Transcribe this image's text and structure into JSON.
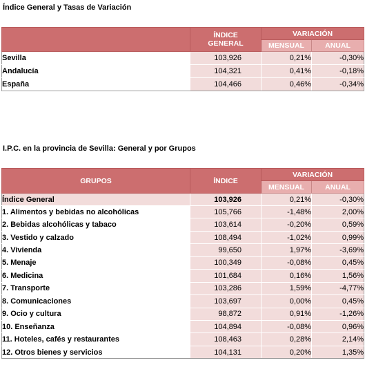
{
  "section1": {
    "title": "Índice General y Tasas de Variación",
    "headers": {
      "indice_line1": "ÍNDICE",
      "indice_line2": "GENERAL",
      "variacion": "VARIACIÓN",
      "mensual": "MENSUAL",
      "anual": "ANUAL"
    },
    "rows": [
      {
        "name": "Sevilla",
        "indice": "103,926",
        "mensual": "0,21%",
        "anual": "-0,30%"
      },
      {
        "name": "Andalucía",
        "indice": "104,321",
        "mensual": "0,41%",
        "anual": "-0,18%"
      },
      {
        "name": "España",
        "indice": "104,466",
        "mensual": "0,46%",
        "anual": "-0,34%"
      }
    ]
  },
  "section2": {
    "title": "I.P.C. en la provincia de Sevilla: General y por Grupos",
    "headers": {
      "grupos": "GRUPOS",
      "indice": "ÍNDICE",
      "variacion": "VARIACIÓN",
      "mensual": "MENSUAL",
      "anual": "ANUAL"
    },
    "general": {
      "name": "Índice General",
      "indice": "103,926",
      "mensual": "0,21%",
      "anual": "-0,30%"
    },
    "rows": [
      {
        "name": "1. Alimentos y bebidas no alcohólicas",
        "indice": "105,766",
        "mensual": "-1,48%",
        "anual": "2,00%"
      },
      {
        "name": "2. Bebidas alcohólicas y tabaco",
        "indice": "103,614",
        "mensual": "-0,20%",
        "anual": "0,59%"
      },
      {
        "name": "3. Vestido y calzado",
        "indice": "108,494",
        "mensual": "-1,02%",
        "anual": "0,99%"
      },
      {
        "name": "4. Vivienda",
        "indice": "99,650",
        "mensual": "1,97%",
        "anual": "-3,69%"
      },
      {
        "name": "5. Menaje",
        "indice": "100,349",
        "mensual": "-0,08%",
        "anual": "0,45%"
      },
      {
        "name": "6. Medicina",
        "indice": "101,684",
        "mensual": "0,16%",
        "anual": "1,56%"
      },
      {
        "name": "7. Transporte",
        "indice": "103,286",
        "mensual": "1,59%",
        "anual": "-4,77%"
      },
      {
        "name": "8. Comunicaciones",
        "indice": "103,697",
        "mensual": "0,00%",
        "anual": "0,45%"
      },
      {
        "name": "9. Ocio y cultura",
        "indice": "98,872",
        "mensual": "0,91%",
        "anual": "-1,26%"
      },
      {
        "name": "10. Enseñanza",
        "indice": "104,894",
        "mensual": "-0,08%",
        "anual": "0,96%"
      },
      {
        "name": "11. Hoteles, cafés y restaurantes",
        "indice": "108,463",
        "mensual": "0,28%",
        "anual": "2,14%"
      },
      {
        "name": "12. Otros bienes y servicios",
        "indice": "104,131",
        "mensual": "0,20%",
        "anual": "1,35%"
      }
    ]
  }
}
